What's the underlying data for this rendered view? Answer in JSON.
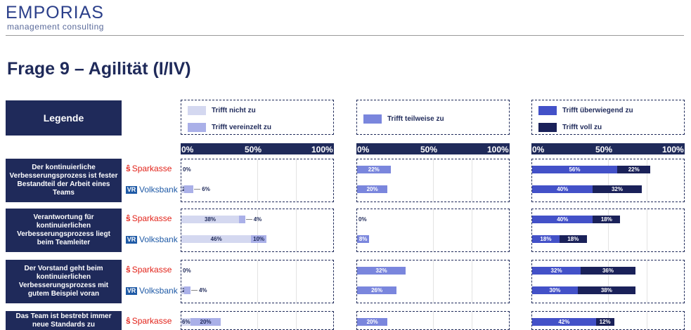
{
  "brand": {
    "name": "EMPORIAS",
    "tagline": "management consulting"
  },
  "page_title": "Frage 9 – Agilität (I/IV)",
  "legend": {
    "heading": "Legende",
    "items": [
      {
        "key": "nicht",
        "label": "Trifft nicht zu",
        "color": "#d4d8f0"
      },
      {
        "key": "vereinzelt",
        "label": "Trifft vereinzelt zu",
        "color": "#aab0e8"
      },
      {
        "key": "teilweise",
        "label": "Trifft teilweise zu",
        "color": "#7a86dd"
      },
      {
        "key": "ueberwiegend",
        "label": "Trifft überwiegend zu",
        "color": "#4351c8"
      },
      {
        "key": "voll",
        "label": "Trifft voll zu",
        "color": "#1a2159"
      }
    ]
  },
  "banks": {
    "sparkasse": "Sparkasse",
    "volksbank": "Volksbank"
  },
  "chart_data": {
    "type": "bar",
    "orientation": "horizontal",
    "stacked": true,
    "axis_ticks": [
      "0%",
      "50%",
      "100%"
    ],
    "xlim": [
      0,
      100
    ],
    "panels": [
      {
        "series": [
          "Trifft nicht zu",
          "Trifft vereinzelt zu"
        ]
      },
      {
        "series": [
          "Trifft teilweise zu"
        ]
      },
      {
        "series": [
          "Trifft überwiegend zu",
          "Trifft voll zu"
        ]
      }
    ],
    "rows": [
      {
        "label": "Der kontinuierliche Verbesserungsprozess ist fester Bestandteil der Arbeit eines Teams",
        "sparkasse": [
          [
            0,
            0
          ],
          [
            22
          ],
          [
            56,
            22
          ]
        ],
        "volksbank": [
          [
            2,
            6
          ],
          [
            20
          ],
          [
            40,
            32
          ]
        ]
      },
      {
        "label": "Verantwortung für kontinuierlichen Verbesserungsprozess liegt beim Teamleiter",
        "sparkasse": [
          [
            38,
            4
          ],
          [
            0
          ],
          [
            40,
            18
          ]
        ],
        "volksbank": [
          [
            46,
            10
          ],
          [
            8
          ],
          [
            18,
            18
          ]
        ]
      },
      {
        "label": "Der Vorstand geht beim kontinuierlichen Verbesserungsprozess mit gutem Beispiel voran",
        "sparkasse": [
          [
            0,
            0
          ],
          [
            32
          ],
          [
            32,
            36
          ]
        ],
        "volksbank": [
          [
            2,
            4
          ],
          [
            26
          ],
          [
            30,
            38
          ]
        ]
      },
      {
        "label": "Das Team ist bestrebt immer neue Standards zu",
        "sparkasse": [
          [
            6,
            20
          ],
          [
            20
          ],
          [
            42,
            12
          ]
        ],
        "volksbank": []
      }
    ]
  }
}
